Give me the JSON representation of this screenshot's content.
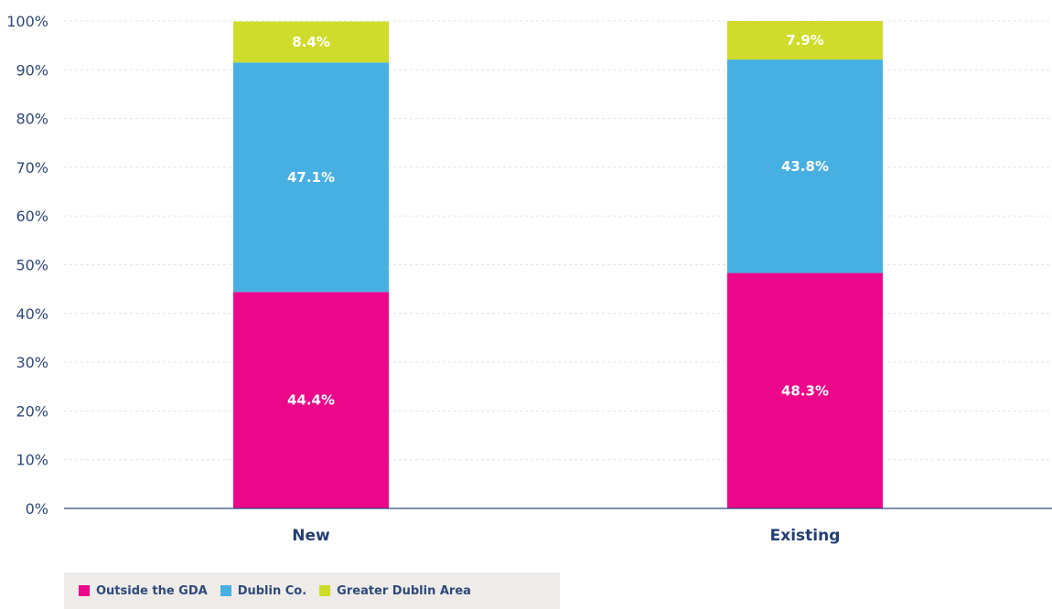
{
  "chart_data": {
    "type": "bar",
    "stacked": true,
    "categories": [
      "New",
      "Existing"
    ],
    "series": [
      {
        "name": "Outside the GDA",
        "values": [
          44.4,
          48.3
        ],
        "labels": [
          "44.4%",
          "48.3%"
        ],
        "color": "#ec078a"
      },
      {
        "name": "Dublin Co.",
        "values": [
          47.1,
          43.8
        ],
        "labels": [
          "47.1%",
          "43.8%"
        ],
        "color": "#47b0e3"
      },
      {
        "name": "Greater Dublin Area",
        "values": [
          8.4,
          7.9
        ],
        "labels": [
          "8.4%",
          "7.9%"
        ],
        "color": "#cfdc2b"
      }
    ],
    "ylim": [
      0,
      100
    ],
    "yticks": [
      "0%",
      "10%",
      "20%",
      "30%",
      "40%",
      "50%",
      "60%",
      "70%",
      "80%",
      "90%",
      "100%"
    ],
    "grid": true,
    "legend_position": "bottom-left",
    "colors": {
      "axis": "#2e4a7a",
      "grid": "#e4e4e4",
      "legend_background": "#eeebe8"
    }
  }
}
